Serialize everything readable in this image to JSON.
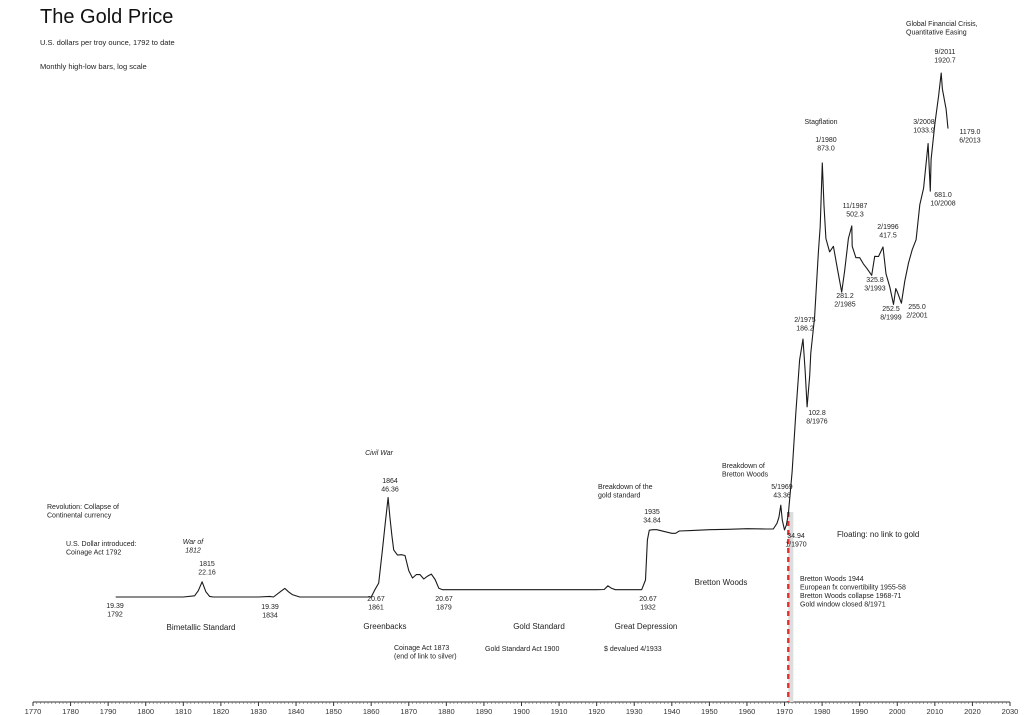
{
  "chart_data": {
    "type": "line",
    "title": "The Gold Price",
    "subtitle": "U.S. dollars per troy ounce, 1792 to date",
    "note": "Monthly high-low bars, log scale",
    "xlabel": "",
    "ylabel": "",
    "x_scale": "linear",
    "y_scale": "log",
    "xlim": [
      1770,
      2030
    ],
    "ylim": [
      14,
      2400
    ],
    "x_ticks": [
      1770,
      1780,
      1790,
      1800,
      1810,
      1820,
      1830,
      1840,
      1850,
      1860,
      1870,
      1880,
      1890,
      1900,
      1910,
      1920,
      1930,
      1940,
      1950,
      1960,
      1970,
      1980,
      1990,
      2000,
      2010,
      2020,
      2030
    ],
    "grid": false,
    "legend": "none",
    "line_color": "#1a1a1a",
    "marker_color": "#e03030",
    "marker_year": 1971,
    "series": [
      {
        "x": [
          1792,
          1800,
          1810,
          1813,
          1814,
          1815,
          1816,
          1817,
          1818,
          1830,
          1833,
          1834,
          1836,
          1837,
          1838,
          1839,
          1841,
          1860,
          1861,
          1862,
          1863,
          1863.7,
          1864.5,
          1865,
          1865.5,
          1866,
          1867,
          1868,
          1869,
          1870,
          1871,
          1872,
          1873,
          1874,
          1875,
          1876,
          1877,
          1878,
          1879,
          1890,
          1900,
          1910,
          1920,
          1922,
          1923,
          1924,
          1925,
          1930,
          1932,
          1933,
          1933.5,
          1934,
          1935,
          1936,
          1940,
          1941,
          1942,
          1945,
          1950,
          1955,
          1960,
          1965,
          1967,
          1968,
          1968.5,
          1969,
          1969.4,
          1970,
          1970.5,
          1971,
          1972,
          1973,
          1974,
          1974.9,
          1975.5,
          1976,
          1976.7,
          1977,
          1978,
          1979,
          1979.5,
          1980.05,
          1980.5,
          1981,
          1982,
          1983,
          1984,
          1985.2,
          1986,
          1987,
          1987.9,
          1988,
          1989,
          1990,
          1991,
          1992,
          1993.2,
          1994,
          1995,
          1996.2,
          1997,
          1998,
          1999,
          1999.6,
          2000,
          2001.1,
          2002,
          2003,
          2004,
          2005,
          2006,
          2007,
          2008.2,
          2008.8,
          2009,
          2010,
          2011,
          2011.7,
          2012,
          2013,
          2013.5
        ],
        "values": [
          19.39,
          19.39,
          19.39,
          19.6,
          20.5,
          22.16,
          20.3,
          19.5,
          19.39,
          19.39,
          19.5,
          19.39,
          20.4,
          20.9,
          20.3,
          19.8,
          19.39,
          19.39,
          20.67,
          21.9,
          29.5,
          36.6,
          46.36,
          38.7,
          33.2,
          29.3,
          28.0,
          28.1,
          27.9,
          24.4,
          22.9,
          23.6,
          23.6,
          22.7,
          23.3,
          23.7,
          22.6,
          20.95,
          20.67,
          20.67,
          20.67,
          20.67,
          20.67,
          20.7,
          21.4,
          20.9,
          20.67,
          20.67,
          20.67,
          22.5,
          32.0,
          34.84,
          35.0,
          35.0,
          33.9,
          33.9,
          34.6,
          34.7,
          35.0,
          35.1,
          35.3,
          35.2,
          35.2,
          37.0,
          39.0,
          43.36,
          38.0,
          34.94,
          36.5,
          40.0,
          58.0,
          97.0,
          155.0,
          186.2,
          140.0,
          102.8,
          135.0,
          165.0,
          226.0,
          400.0,
          500.0,
          873.0,
          600.0,
          450.0,
          400.0,
          420.0,
          350.0,
          281.2,
          340.0,
          450.0,
          502.3,
          420.0,
          380.0,
          380.0,
          360.0,
          345.0,
          325.8,
          385.0,
          384.0,
          417.5,
          330.0,
          294.0,
          252.5,
          290.0,
          282.0,
          255.0,
          310.0,
          363.0,
          409.0,
          445.0,
          605.0,
          700.0,
          1033.9,
          681.0,
          900.0,
          1225.0,
          1571.0,
          1920.7,
          1668.0,
          1400.0,
          1179.0
        ]
      }
    ],
    "annotations": {
      "global_crisis": [
        "Global Financial Crisis,",
        "Quantitative Easing"
      ],
      "a2011": [
        "9/2011",
        "1920.7"
      ],
      "a2008": [
        "3/2008",
        "1033.9"
      ],
      "a2013": [
        "1179.0",
        "6/2013"
      ],
      "stagflation": "Stagflation",
      "a1980": [
        "1/1980",
        "873.0"
      ],
      "a1987": [
        "11/1987",
        "502.3"
      ],
      "a1996": [
        "2/1996",
        "417.5"
      ],
      "a2008b": [
        "681.0",
        "10/2008"
      ],
      "a1985": [
        "281.2",
        "2/1985"
      ],
      "a1993": [
        "325.8",
        "3/1993"
      ],
      "a1999": [
        "252.5",
        "8/1999"
      ],
      "a2001": [
        "255.0",
        "2/2001"
      ],
      "a1975": [
        "2/1975",
        "186.2"
      ],
      "a1976": [
        "102.8",
        "8/1976"
      ],
      "civil_war": "Civil War",
      "a1864": [
        "1864",
        "46.36"
      ],
      "breakdown_gold": [
        "Breakdown of the",
        "gold standard"
      ],
      "a1935": [
        "1935",
        "34.84"
      ],
      "breakdown_bw": [
        "Breakdown of",
        "Bretton Woods"
      ],
      "a1969": [
        "5/1969",
        "43.36"
      ],
      "a1970": [
        "34.94",
        "1/1970"
      ],
      "floating": "Floating: no link to gold",
      "revolution": [
        "Revolution: Collapse of",
        "Continental currency"
      ],
      "war1812": [
        "War of",
        "1812"
      ],
      "dollar_intro": [
        "U.S. Dollar introduced:",
        "Coinage Act 1792"
      ],
      "a1815": [
        "1815",
        "22.16"
      ],
      "a1792": [
        "19.39",
        "1792"
      ],
      "a1834": [
        "19.39",
        "1834"
      ],
      "a1861": [
        "20.67",
        "1861"
      ],
      "a1879": [
        "20.67",
        "1879"
      ],
      "a1932": [
        "20.67",
        "1932"
      ],
      "bretton_woods": "Bretton Woods",
      "bw_notes": [
        "Bretton Woods 1944",
        "European fx convertibility 1955-58",
        "Bretton Woods collapse 1968-71",
        "Gold window closed 8/1971"
      ],
      "bimetallic": "Bimetallic Standard",
      "greenbacks": "Greenbacks",
      "gold_standard": "Gold Standard",
      "great_depression": "Great Depression",
      "coinage_1873": [
        "Coinage Act 1873",
        "(end of link to silver)"
      ],
      "gs_act": "Gold Standard Act 1900",
      "devalued": "$ devalued 4/1933"
    }
  }
}
